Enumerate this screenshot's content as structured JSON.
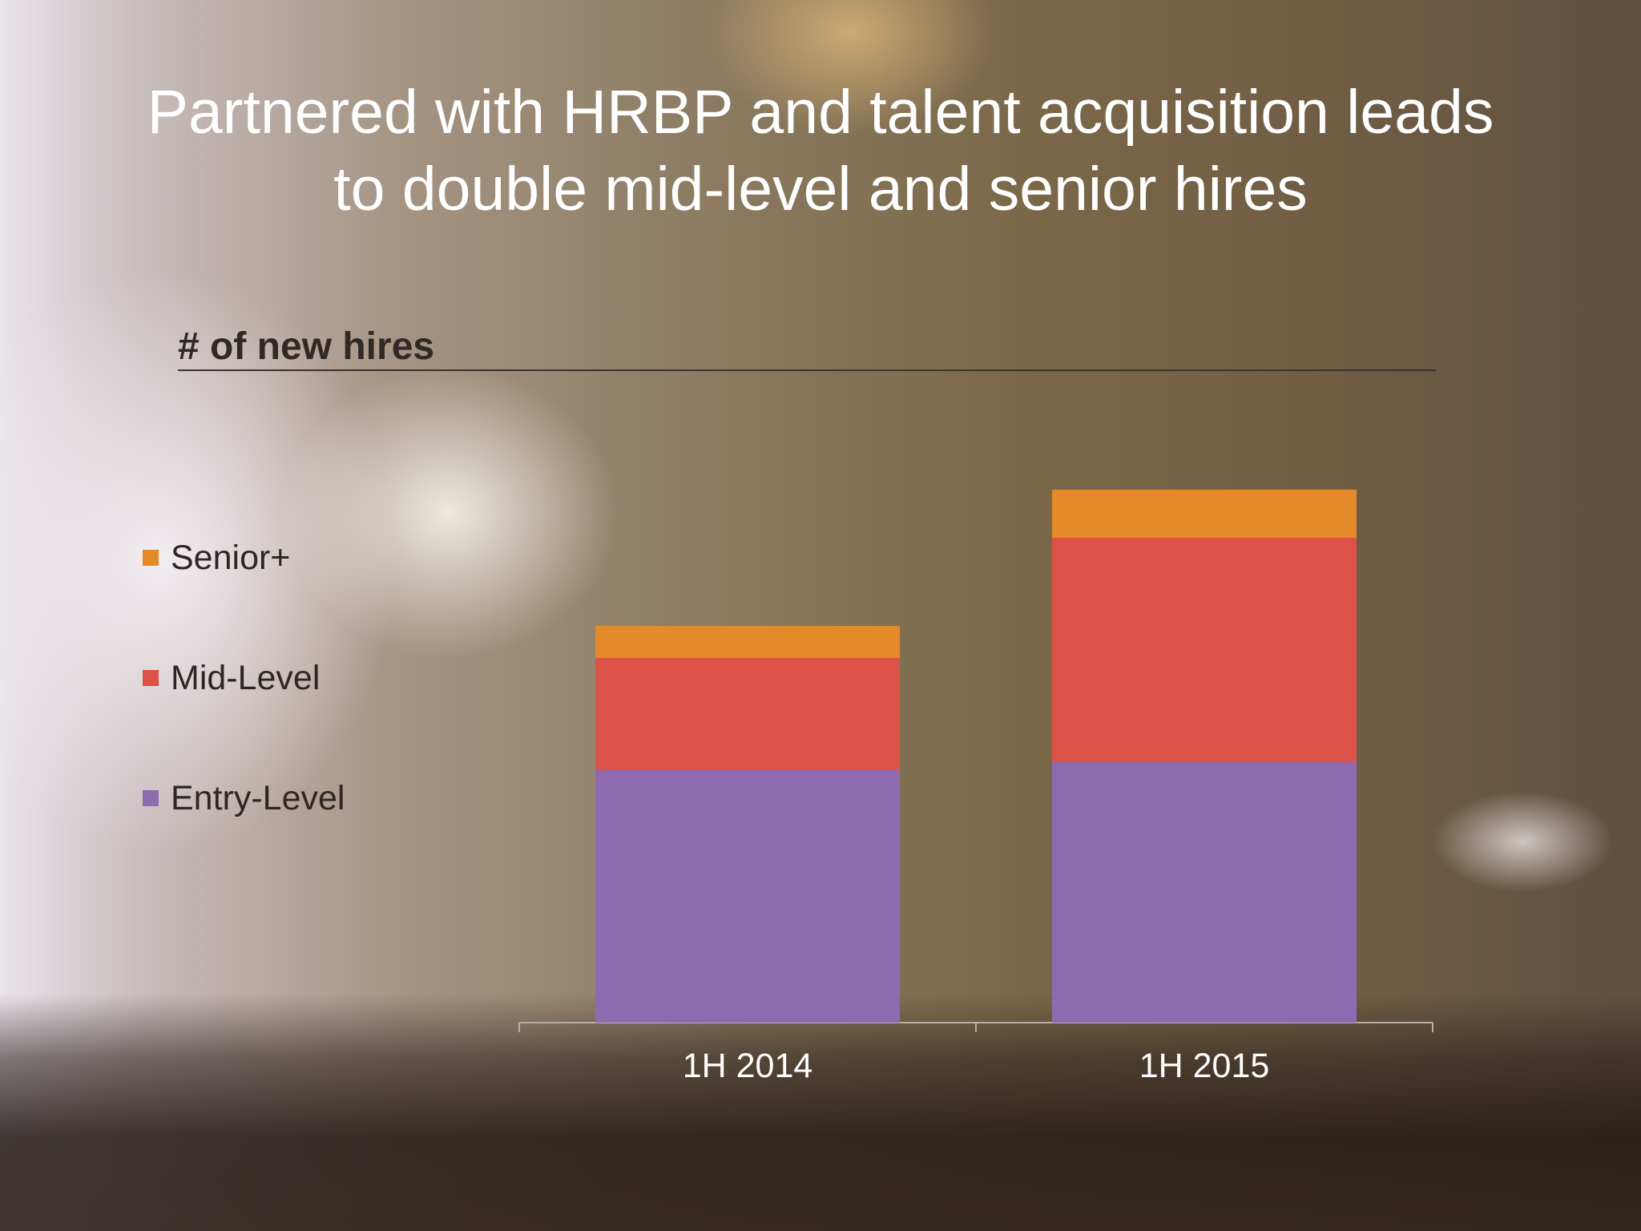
{
  "slide": {
    "title_line1": "Partnered with HRBP and talent acquisition leads",
    "title_line2": "to double mid-level and senior hires"
  },
  "chart_data": {
    "type": "bar",
    "stacked": true,
    "title": "# of new hires",
    "xlabel": "",
    "ylabel": "",
    "categories": [
      "1H 2014",
      "1H 2015"
    ],
    "series": [
      {
        "name": "Entry-Level",
        "values": [
          31.5,
          32.5
        ],
        "color": "#8e6bb0"
      },
      {
        "name": "Mid-Level",
        "values": [
          14,
          28
        ],
        "color": "#dc5246"
      },
      {
        "name": "Senior+",
        "values": [
          4,
          6
        ],
        "color": "#e48a2a"
      }
    ],
    "legend_order": [
      "Senior+",
      "Mid-Level",
      "Entry-Level"
    ],
    "legend_position": "left",
    "y_axis_shown": false,
    "grid": false
  }
}
